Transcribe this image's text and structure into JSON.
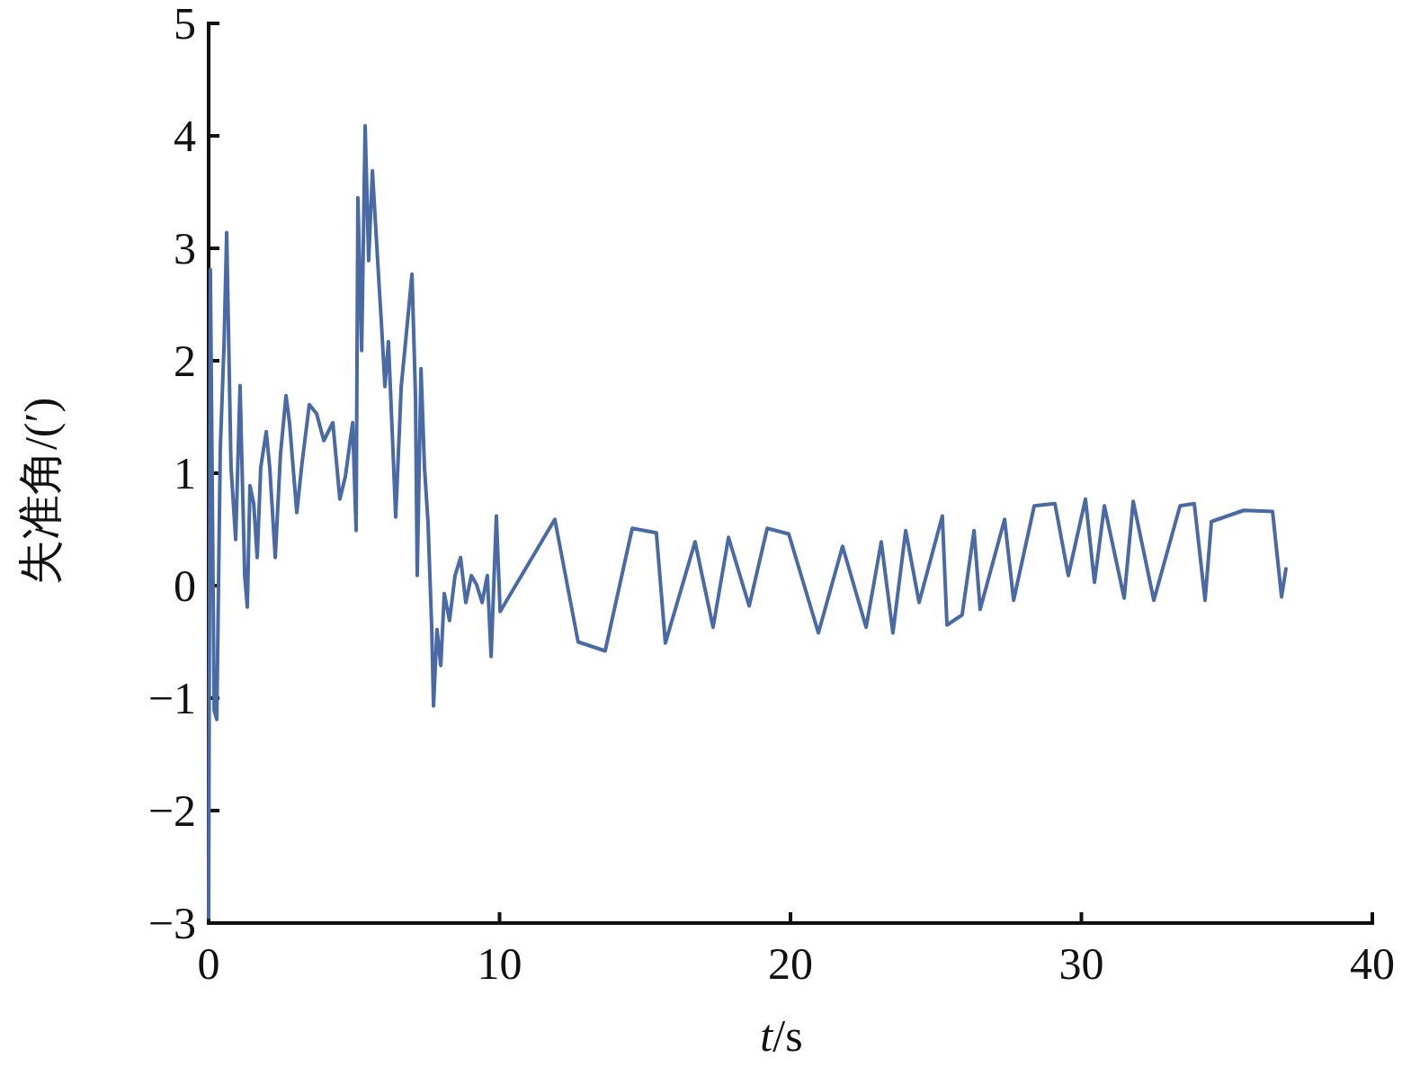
{
  "chart_data": {
    "type": "line",
    "xlabel": "*t*/s",
    "ylabel": "失准角/(′)",
    "xlim": [
      0,
      40
    ],
    "xticks": [
      0,
      10,
      20,
      30,
      40
    ],
    "ylim": [
      -3,
      5
    ],
    "yticks": [
      {
        "value": -3,
        "label": "−3"
      },
      {
        "value": -2,
        "label": "−2"
      },
      {
        "value": -1,
        "label": "−1"
      },
      0,
      1,
      2,
      3,
      4,
      5
    ],
    "grid": false,
    "marker": "none",
    "line_style": "solid",
    "series": [
      {
        "color": "#4a6aa5",
        "x": [
          0,
          0.06,
          0.19,
          0.28,
          0.4,
          0.53,
          0.62,
          0.77,
          0.93,
          1.08,
          1.24,
          1.33,
          1.42,
          1.55,
          1.67,
          1.79,
          1.98,
          2.1,
          2.29,
          2.47,
          2.66,
          2.78,
          3.03,
          3.21,
          3.46,
          3.71,
          3.96,
          4.27,
          4.51,
          4.7,
          4.95,
          5.07,
          5.13,
          5.26,
          5.38,
          5.5,
          5.63,
          5.81,
          5.94,
          6.06,
          6.18,
          6.31,
          6.43,
          6.62,
          6.8,
          6.99,
          7.11,
          7.17,
          7.3,
          7.42,
          7.54,
          7.67,
          7.73,
          7.85,
          7.98,
          8.1,
          8.28,
          8.47,
          8.66,
          8.84,
          9.03,
          9.21,
          9.4,
          9.58,
          9.71,
          9.89,
          10.02,
          11.9,
          12.7,
          13.63,
          14.56,
          15.39,
          15.7,
          16.72,
          17.34,
          17.87,
          18.58,
          19.2,
          19.94,
          20.96,
          21.79,
          22.6,
          23.12,
          23.52,
          23.96,
          24.42,
          25.22,
          25.38,
          25.9,
          26.31,
          26.52,
          27.36,
          27.67,
          28.38,
          29.09,
          29.55,
          30.14,
          30.45,
          30.79,
          31.47,
          31.78,
          32.49,
          33.39,
          33.88,
          34.25,
          34.47,
          35.58,
          36.57,
          36.88,
          37.03
        ],
        "values": [
          -2.95,
          2.81,
          -1.11,
          -1.19,
          1.21,
          2.15,
          3.14,
          1.05,
          0.41,
          1.78,
          0.09,
          -0.19,
          0.89,
          0.73,
          0.25,
          1.05,
          1.37,
          1.05,
          0.25,
          1.17,
          1.69,
          1.45,
          0.65,
          1.09,
          1.61,
          1.53,
          1.29,
          1.45,
          0.77,
          0.97,
          1.45,
          0.49,
          3.45,
          2.09,
          4.09,
          2.89,
          3.69,
          2.89,
          2.33,
          1.77,
          2.17,
          1.37,
          0.61,
          1.77,
          2.25,
          2.77,
          1.69,
          0.09,
          1.93,
          1.05,
          0.57,
          -0.39,
          -1.07,
          -0.39,
          -0.71,
          -0.07,
          -0.31,
          0.09,
          0.25,
          -0.15,
          0.09,
          0.01,
          -0.15,
          0.09,
          -0.63,
          0.62,
          -0.23,
          0.59,
          -0.5,
          -0.58,
          0.51,
          0.47,
          -0.51,
          0.39,
          -0.37,
          0.43,
          -0.18,
          0.51,
          0.46,
          -0.42,
          0.35,
          -0.37,
          0.39,
          -0.42,
          0.49,
          -0.15,
          0.62,
          -0.35,
          -0.26,
          0.49,
          -0.21,
          0.59,
          -0.13,
          0.71,
          0.73,
          0.09,
          0.77,
          0.03,
          0.71,
          -0.11,
          0.75,
          -0.13,
          0.71,
          0.73,
          -0.13,
          0.57,
          0.67,
          0.66,
          -0.1,
          0.15
        ]
      }
    ]
  }
}
